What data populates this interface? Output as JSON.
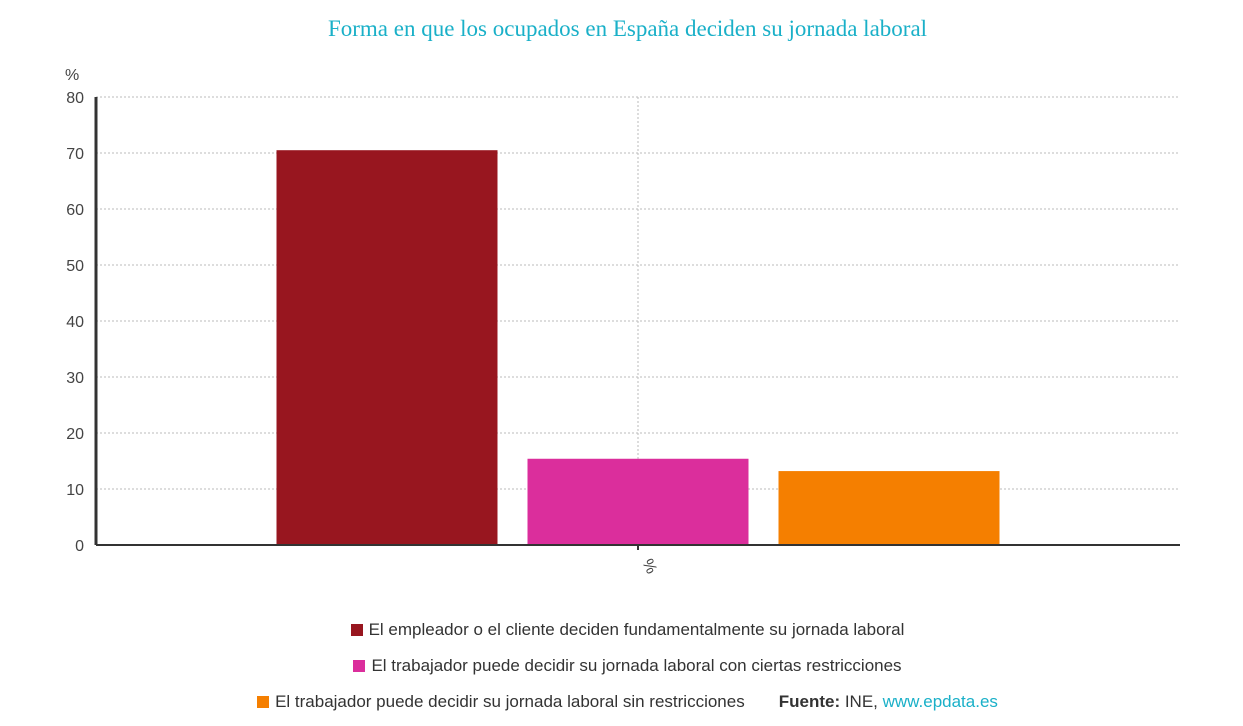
{
  "chart_data": {
    "type": "bar",
    "title": "Forma en que los ocupados en España deciden su jornada laboral",
    "ylabel": "%",
    "xlabel": "",
    "categories": [
      "%"
    ],
    "ylim": [
      0,
      80
    ],
    "yticks": [
      0,
      10,
      20,
      30,
      40,
      50,
      60,
      70,
      80
    ],
    "grid": true,
    "legend_position": "bottom",
    "series": [
      {
        "name": "El empleador o el cliente deciden fundamentalmente su jornada laboral",
        "values": [
          70.5
        ],
        "color": "#98161f"
      },
      {
        "name": "El trabajador puede decidir su jornada laboral con ciertas restricciones",
        "values": [
          15.4
        ],
        "color": "#db2e9c"
      },
      {
        "name": "El trabajador puede decidir su jornada laboral sin restricciones",
        "values": [
          13.2
        ],
        "color": "#f57f00"
      }
    ]
  },
  "source": {
    "label": "Fuente:",
    "text": " INE, ",
    "link": "www.epdata.es"
  }
}
